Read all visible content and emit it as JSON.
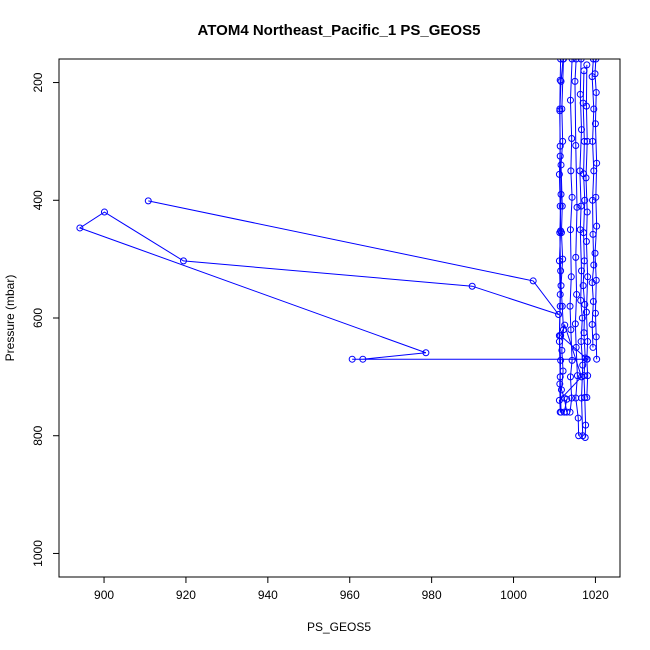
{
  "chart_data": {
    "type": "line",
    "title": "ATOM4 Northeast_Pacific_1 PS_GEOS5",
    "xlabel": "PS_GEOS5",
    "ylabel": "Pressure (mbar)",
    "xlim": [
      889,
      1026
    ],
    "ylim": [
      1040,
      160
    ],
    "y_reversed": true,
    "xticks": [
      900,
      920,
      940,
      960,
      980,
      1000,
      1020
    ],
    "yticks": [
      200,
      400,
      600,
      800,
      1000
    ],
    "grid": false,
    "legend": "none",
    "color": "#0000ff",
    "marker": "open-circle",
    "series": [
      {
        "values": [
          {
            "x": 910.8,
            "y": 401
          },
          {
            "x": 1004.8,
            "y": 537
          },
          {
            "x": 1011,
            "y": 594
          },
          {
            "x": 989.9,
            "y": 546
          },
          {
            "x": 919.4,
            "y": 503
          },
          {
            "x": 900.1,
            "y": 420
          },
          {
            "x": 894.1,
            "y": 447
          },
          {
            "x": 978.6,
            "y": 659
          },
          {
            "x": 963.2,
            "y": 670
          },
          {
            "x": 960.6,
            "y": 670
          },
          {
            "x": 1018,
            "y": 670
          },
          {
            "x": 1011.5,
            "y": 630
          },
          {
            "x": 1012.5,
            "y": 612
          },
          {
            "x": 1016.6,
            "y": 700
          },
          {
            "x": 1011.2,
            "y": 740
          },
          {
            "x": 1011.6,
            "y": 760
          },
          {
            "x": 1011.4,
            "y": 700
          },
          {
            "x": 1011.2,
            "y": 640
          },
          {
            "x": 1011.4,
            "y": 580
          },
          {
            "x": 1011.5,
            "y": 520
          },
          {
            "x": 1011.3,
            "y": 455
          },
          {
            "x": 1011.6,
            "y": 390
          },
          {
            "x": 1011.4,
            "y": 325
          },
          {
            "x": 1011.3,
            "y": 245
          },
          {
            "x": 1011.4,
            "y": 196
          },
          {
            "x": 1011.5,
            "y": 160
          }
        ]
      },
      {
        "values": [
          {
            "x": 1012.1,
            "y": 160
          },
          {
            "x": 1011.6,
            "y": 198
          },
          {
            "x": 1011.3,
            "y": 248
          },
          {
            "x": 1011.4,
            "y": 308
          },
          {
            "x": 1011.2,
            "y": 356
          },
          {
            "x": 1011.4,
            "y": 410
          },
          {
            "x": 1011.5,
            "y": 452
          },
          {
            "x": 1011.2,
            "y": 503
          },
          {
            "x": 1011.4,
            "y": 560
          },
          {
            "x": 1011.2,
            "y": 630
          },
          {
            "x": 1011.5,
            "y": 672
          },
          {
            "x": 1011.3,
            "y": 712
          },
          {
            "x": 1011.4,
            "y": 760
          },
          {
            "x": 1012.4,
            "y": 760
          },
          {
            "x": 1013.0,
            "y": 738
          }
        ]
      },
      {
        "values": [
          {
            "x": 1012.2,
            "y": 160
          },
          {
            "x": 1011.8,
            "y": 245
          },
          {
            "x": 1012.0,
            "y": 300
          },
          {
            "x": 1011.6,
            "y": 340
          },
          {
            "x": 1011.9,
            "y": 410
          },
          {
            "x": 1011.7,
            "y": 455
          },
          {
            "x": 1012.0,
            "y": 500
          },
          {
            "x": 1011.6,
            "y": 545
          },
          {
            "x": 1011.9,
            "y": 580
          },
          {
            "x": 1012.2,
            "y": 620
          },
          {
            "x": 1011.8,
            "y": 655
          },
          {
            "x": 1012.1,
            "y": 690
          },
          {
            "x": 1011.7,
            "y": 722
          },
          {
            "x": 1012.4,
            "y": 736
          },
          {
            "x": 1013.0,
            "y": 760
          }
        ]
      },
      {
        "values": [
          {
            "x": 1014.3,
            "y": 160
          },
          {
            "x": 1013.9,
            "y": 230
          },
          {
            "x": 1014.2,
            "y": 295
          },
          {
            "x": 1014.0,
            "y": 350
          },
          {
            "x": 1014.3,
            "y": 395
          },
          {
            "x": 1013.9,
            "y": 450
          },
          {
            "x": 1014.1,
            "y": 530
          },
          {
            "x": 1013.8,
            "y": 580
          },
          {
            "x": 1014.0,
            "y": 620
          },
          {
            "x": 1014.3,
            "y": 672
          },
          {
            "x": 1013.9,
            "y": 700
          },
          {
            "x": 1014.2,
            "y": 736
          },
          {
            "x": 1013.8,
            "y": 760
          }
        ]
      },
      {
        "values": [
          {
            "x": 1015.3,
            "y": 160
          },
          {
            "x": 1015.0,
            "y": 198
          },
          {
            "x": 1015.2,
            "y": 307
          },
          {
            "x": 1015.5,
            "y": 412
          },
          {
            "x": 1015.2,
            "y": 497
          },
          {
            "x": 1015.4,
            "y": 560
          },
          {
            "x": 1015.1,
            "y": 610
          },
          {
            "x": 1015.3,
            "y": 650
          },
          {
            "x": 1015.6,
            "y": 698
          },
          {
            "x": 1015.2,
            "y": 736
          },
          {
            "x": 1015.8,
            "y": 770
          },
          {
            "x": 1015.9,
            "y": 800
          }
        ]
      },
      {
        "values": [
          {
            "x": 1016.5,
            "y": 160
          },
          {
            "x": 1016.3,
            "y": 220
          },
          {
            "x": 1016.6,
            "y": 280
          },
          {
            "x": 1016.2,
            "y": 350
          },
          {
            "x": 1016.5,
            "y": 410
          },
          {
            "x": 1016.3,
            "y": 450
          },
          {
            "x": 1016.6,
            "y": 520
          },
          {
            "x": 1016.4,
            "y": 570
          },
          {
            "x": 1016.8,
            "y": 600
          },
          {
            "x": 1016.5,
            "y": 640
          },
          {
            "x": 1016.9,
            "y": 680
          },
          {
            "x": 1016.6,
            "y": 736
          },
          {
            "x": 1016.9,
            "y": 800
          }
        ]
      },
      {
        "values": [
          {
            "x": 1017.2,
            "y": 180
          },
          {
            "x": 1017.0,
            "y": 235
          },
          {
            "x": 1017.3,
            "y": 300
          },
          {
            "x": 1017.1,
            "y": 355
          },
          {
            "x": 1017.4,
            "y": 400
          },
          {
            "x": 1017.1,
            "y": 455
          },
          {
            "x": 1017.3,
            "y": 503
          },
          {
            "x": 1017.0,
            "y": 545
          },
          {
            "x": 1017.4,
            "y": 577
          },
          {
            "x": 1017.2,
            "y": 625
          },
          {
            "x": 1017.5,
            "y": 668
          },
          {
            "x": 1017.2,
            "y": 698
          },
          {
            "x": 1017.4,
            "y": 735
          },
          {
            "x": 1017.6,
            "y": 782
          },
          {
            "x": 1017.5,
            "y": 803
          }
        ]
      },
      {
        "values": [
          {
            "x": 1017.9,
            "y": 170
          },
          {
            "x": 1017.8,
            "y": 240
          },
          {
            "x": 1018.0,
            "y": 300
          },
          {
            "x": 1017.7,
            "y": 362
          },
          {
            "x": 1018.0,
            "y": 420
          },
          {
            "x": 1017.8,
            "y": 470
          },
          {
            "x": 1018.1,
            "y": 530
          },
          {
            "x": 1017.8,
            "y": 590
          },
          {
            "x": 1018.1,
            "y": 640
          },
          {
            "x": 1017.9,
            "y": 670
          },
          {
            "x": 1018.1,
            "y": 698
          },
          {
            "x": 1017.9,
            "y": 735
          }
        ]
      },
      {
        "values": [
          {
            "x": 1019.5,
            "y": 160
          },
          {
            "x": 1019.2,
            "y": 190
          },
          {
            "x": 1019.6,
            "y": 245
          },
          {
            "x": 1019.3,
            "y": 300
          },
          {
            "x": 1019.6,
            "y": 350
          },
          {
            "x": 1019.3,
            "y": 400
          },
          {
            "x": 1019.4,
            "y": 458
          },
          {
            "x": 1019.6,
            "y": 510
          },
          {
            "x": 1019.2,
            "y": 540
          },
          {
            "x": 1019.5,
            "y": 572
          },
          {
            "x": 1019.2,
            "y": 611
          },
          {
            "x": 1019.4,
            "y": 650
          }
        ]
      },
      {
        "values": [
          {
            "x": 1020.1,
            "y": 160
          },
          {
            "x": 1019.9,
            "y": 185
          },
          {
            "x": 1020.2,
            "y": 217
          },
          {
            "x": 1020.0,
            "y": 270
          },
          {
            "x": 1020.3,
            "y": 337
          },
          {
            "x": 1020.1,
            "y": 395
          },
          {
            "x": 1020.3,
            "y": 444
          },
          {
            "x": 1019.9,
            "y": 490
          },
          {
            "x": 1020.2,
            "y": 536
          },
          {
            "x": 1020.0,
            "y": 592
          },
          {
            "x": 1020.2,
            "y": 632
          },
          {
            "x": 1020.3,
            "y": 670
          }
        ]
      }
    ]
  }
}
